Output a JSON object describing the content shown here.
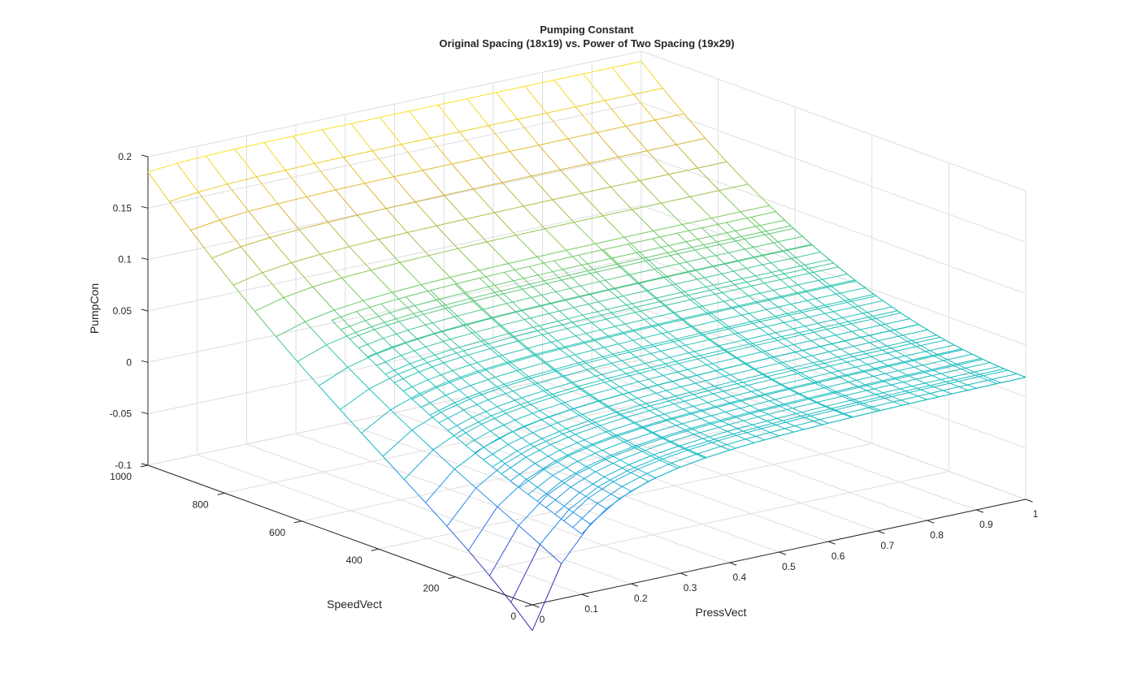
{
  "chart_data": {
    "type": "surface-mesh",
    "title": [
      "Pumping Constant",
      "Original Spacing (18x19) vs. Power of Two Spacing (19x29)"
    ],
    "xlabel": "PressVect",
    "ylabel": "SpeedVect",
    "zlabel": "PumpCon",
    "xlim": [
      0,
      1
    ],
    "ylim": [
      0,
      1000
    ],
    "zlim": [
      -0.1,
      0.2
    ],
    "x_ticks": [
      "0",
      "0.1",
      "0.2",
      "0.3",
      "0.4",
      "0.5",
      "0.6",
      "0.7",
      "0.8",
      "0.9",
      "1"
    ],
    "y_ticks": [
      "0",
      "200",
      "400",
      "600",
      "800",
      "1000"
    ],
    "z_ticks": [
      "-0.1",
      "-0.05",
      "0",
      "0.05",
      "0.1",
      "0.15",
      "0.2"
    ],
    "grid": true,
    "colormap": [
      "#3e26a8",
      "#2c7ef7",
      "#17b9c8",
      "#26c4b1",
      "#80cb58",
      "#dcb032",
      "#f9e324"
    ],
    "series": [
      {
        "grid_size": "18x19",
        "x_range": [
          0.0,
          1.0
        ],
        "y_range": [
          0,
          1000
        ],
        "peak_value": 0.19,
        "min_value": -0.09,
        "far_corner_value": 0.02
      },
      {
        "grid_size": "19x29",
        "x_range": [
          0.1,
          1.0
        ],
        "y_range": [
          0,
          650
        ],
        "peak_value": 0.11,
        "min_value": -0.03,
        "far_corner_value": 0.02
      }
    ]
  }
}
